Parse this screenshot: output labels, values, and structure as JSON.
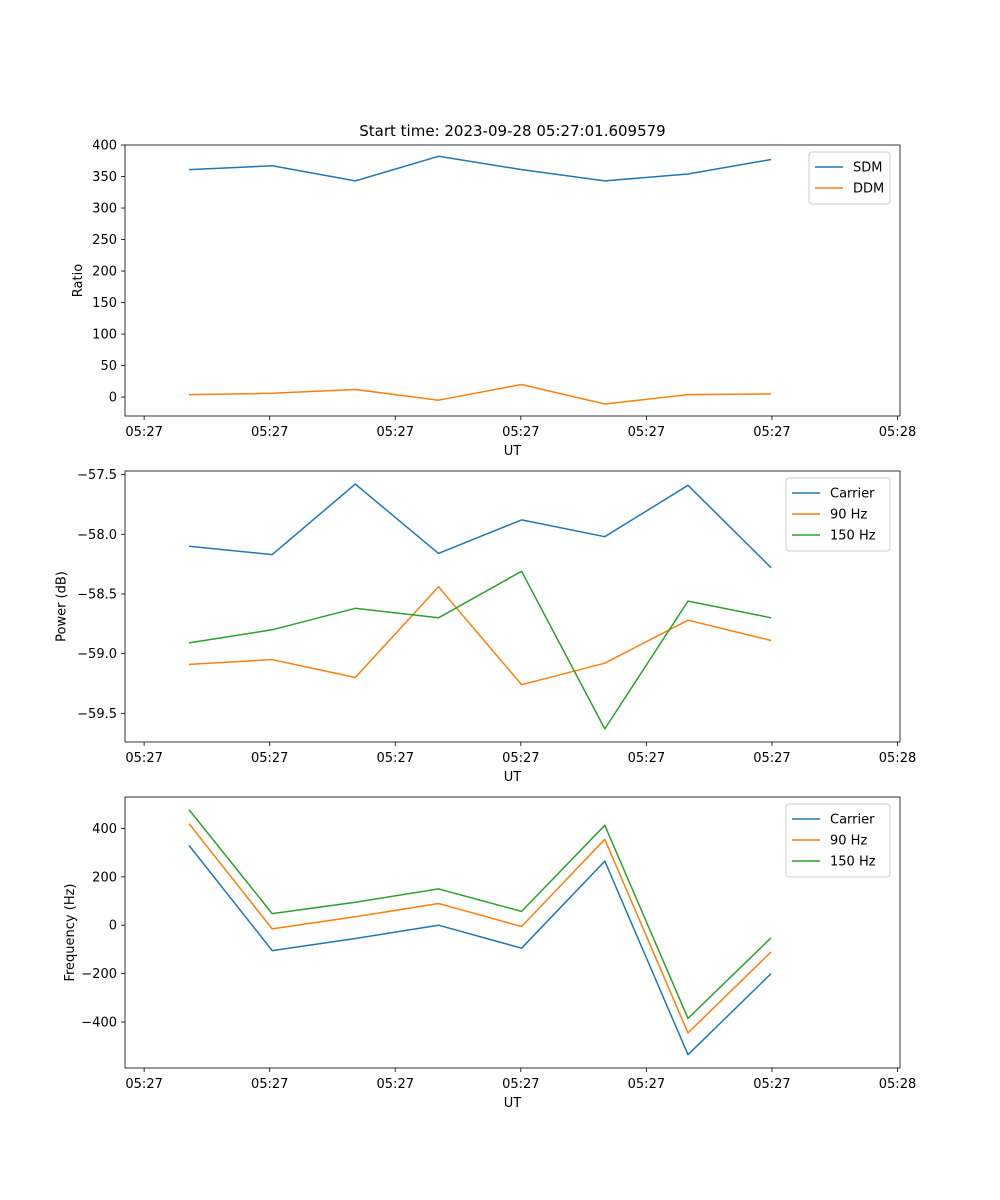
{
  "chart_data": [
    {
      "type": "line",
      "title": "Start time: 2023-09-28 05:27:01.609579",
      "xlabel": "UT",
      "ylabel": "Ratio",
      "x": [
        1,
        2,
        3,
        4,
        5,
        6,
        7,
        8
      ],
      "xlim": [
        0.23,
        9.55
      ],
      "ylim": [
        -30,
        400
      ],
      "xticks": [
        0.46,
        1.97,
        3.48,
        4.99,
        6.5,
        8.01,
        9.52
      ],
      "xtick_labels": [
        "05:27",
        "05:27",
        "05:27",
        "05:27",
        "05:27",
        "05:27",
        "05:28"
      ],
      "yticks": [
        0,
        50,
        100,
        150,
        200,
        250,
        300,
        350,
        400
      ],
      "ytick_labels": [
        "0",
        "50",
        "100",
        "150",
        "200",
        "250",
        "300",
        "350",
        "400"
      ],
      "legend_position": "top-right",
      "series": [
        {
          "name": "SDM",
          "color": "#1f77b4",
          "values": [
            361,
            367,
            343,
            382,
            361,
            343,
            354,
            377
          ]
        },
        {
          "name": "DDM",
          "color": "#ff7f0e",
          "values": [
            4,
            6,
            12,
            -5,
            20,
            -11,
            4,
            5
          ]
        }
      ]
    },
    {
      "type": "line",
      "title": "",
      "xlabel": "UT",
      "ylabel": "Power (dB)",
      "x": [
        1,
        2,
        3,
        4,
        5,
        6,
        7,
        8
      ],
      "xlim": [
        0.23,
        9.55
      ],
      "ylim": [
        -59.74,
        -57.47
      ],
      "xticks": [
        0.46,
        1.97,
        3.48,
        4.99,
        6.5,
        8.01,
        9.52
      ],
      "xtick_labels": [
        "05:27",
        "05:27",
        "05:27",
        "05:27",
        "05:27",
        "05:27",
        "05:28"
      ],
      "yticks": [
        -59.5,
        -59.0,
        -58.5,
        -58.0,
        -57.5
      ],
      "ytick_labels": [
        "−59.5",
        "−59.0",
        "−58.5",
        "−58.0",
        "−57.5"
      ],
      "legend_position": "top-right",
      "series": [
        {
          "name": "Carrier",
          "color": "#1f77b4",
          "values": [
            -58.1,
            -58.17,
            -57.58,
            -58.16,
            -57.88,
            -58.02,
            -57.59,
            -58.28
          ]
        },
        {
          "name": "90 Hz",
          "color": "#ff7f0e",
          "values": [
            -59.09,
            -59.05,
            -59.2,
            -58.44,
            -59.26,
            -59.08,
            -58.72,
            -58.89
          ]
        },
        {
          "name": "150 Hz",
          "color": "#2ca02c",
          "values": [
            -58.91,
            -58.8,
            -58.62,
            -58.7,
            -58.31,
            -59.63,
            -58.56,
            -58.7
          ]
        }
      ]
    },
    {
      "type": "line",
      "title": "",
      "xlabel": "UT",
      "ylabel": "Frequency (Hz)",
      "x": [
        1,
        2,
        3,
        4,
        5,
        6,
        7,
        8
      ],
      "xlim": [
        0.23,
        9.55
      ],
      "ylim": [
        -590,
        530
      ],
      "xticks": [
        0.46,
        1.97,
        3.48,
        4.99,
        6.5,
        8.01,
        9.52
      ],
      "xtick_labels": [
        "05:27",
        "05:27",
        "05:27",
        "05:27",
        "05:27",
        "05:27",
        "05:28"
      ],
      "yticks": [
        -400,
        -200,
        0,
        200,
        400
      ],
      "ytick_labels": [
        "−400",
        "−200",
        "0",
        "200",
        "400"
      ],
      "legend_position": "top-right",
      "series": [
        {
          "name": "Carrier",
          "color": "#1f77b4",
          "values": [
            330,
            -105,
            -55,
            0,
            -95,
            265,
            -535,
            -200
          ]
        },
        {
          "name": "90 Hz",
          "color": "#ff7f0e",
          "values": [
            420,
            -15,
            35,
            90,
            -5,
            355,
            -445,
            -110
          ]
        },
        {
          "name": "150 Hz",
          "color": "#2ca02c",
          "values": [
            478,
            48,
            95,
            150,
            57,
            413,
            -385,
            -52
          ]
        }
      ]
    }
  ]
}
